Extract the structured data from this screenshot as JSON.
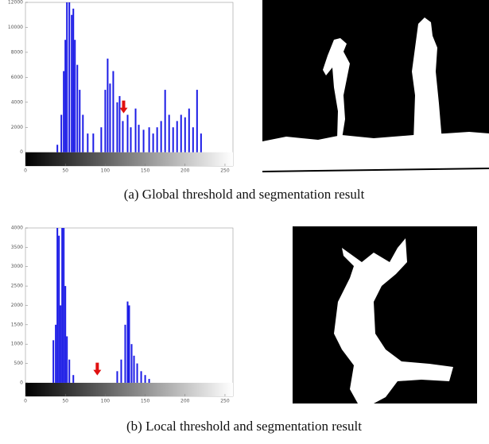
{
  "chart_data": [
    {
      "type": "bar",
      "caption": "(a) Global threshold and segmentation result",
      "x": [
        40,
        45,
        48,
        50,
        52,
        55,
        58,
        60,
        62,
        65,
        68,
        72,
        78,
        85,
        95,
        100,
        103,
        106,
        110,
        115,
        118,
        122,
        128,
        132,
        138,
        142,
        148,
        155,
        160,
        165,
        170,
        175,
        180,
        185,
        190,
        195,
        200,
        205,
        210,
        215,
        220
      ],
      "values": [
        600,
        3000,
        6500,
        9000,
        12000,
        12000,
        11000,
        11500,
        9000,
        7000,
        5000,
        3000,
        1500,
        1500,
        2000,
        5000,
        7500,
        5500,
        6500,
        4000,
        4500,
        2500,
        3000,
        2000,
        3500,
        2200,
        1800,
        2000,
        1500,
        2000,
        2500,
        5000,
        3000,
        2000,
        2500,
        3000,
        2800,
        3500,
        2000,
        5000,
        1500
      ],
      "color": "#1c1ce6",
      "threshold": 123,
      "threshold_color": "#e01010",
      "xlim": [
        0,
        260
      ],
      "xticks": [
        0,
        50,
        100,
        150,
        200,
        250
      ],
      "ylim": [
        -1100,
        12000
      ],
      "yticks": [
        0,
        2000,
        4000,
        6000,
        8000,
        10000,
        12000
      ]
    },
    {
      "type": "bar",
      "caption": "(b) Local threshold and segmentation result",
      "x": [
        35,
        38,
        40,
        42,
        44,
        46,
        48,
        50,
        52,
        55,
        60,
        115,
        120,
        125,
        128,
        130,
        133,
        136,
        140,
        145,
        150,
        155
      ],
      "values": [
        1100,
        1500,
        4000,
        3800,
        2000,
        4000,
        4000,
        2500,
        1200,
        600,
        200,
        300,
        600,
        1500,
        2100,
        2000,
        1000,
        700,
        500,
        300,
        200,
        100
      ],
      "color": "#1c1ce6",
      "threshold": 90,
      "threshold_color": "#e01010",
      "xlim": [
        0,
        260
      ],
      "xticks": [
        0,
        50,
        100,
        150,
        200,
        250
      ],
      "ylim": [
        -350,
        4000
      ],
      "yticks": [
        0,
        500,
        1000,
        1500,
        2000,
        2500,
        3000,
        3500,
        4000
      ]
    }
  ]
}
